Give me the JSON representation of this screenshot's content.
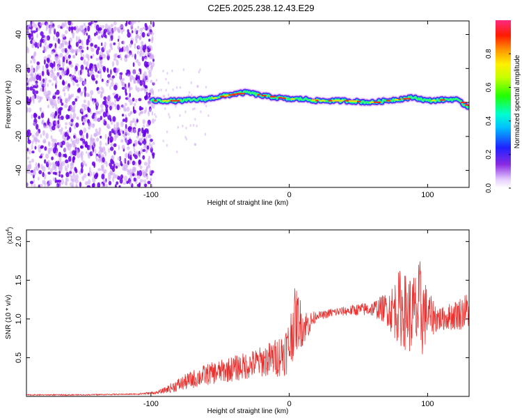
{
  "page": {
    "title": "C2E5.2025.238.12.43.E29"
  },
  "colors": {
    "background": "#ffffff",
    "axis": "#000000",
    "snr_line": "#e8302e",
    "scatter_low": "#cfa8f2",
    "scatter_high": "#6a00e8"
  },
  "chart_data": [
    {
      "type": "heatmap",
      "title": "C2E5.2025.238.12.43.E29",
      "xlabel": "Height of straight line (km)",
      "ylabel": "Frequency (Hz)",
      "xlim": [
        -190,
        130
      ],
      "ylim": [
        -50,
        48
      ],
      "xticks": [
        -100,
        0,
        100
      ],
      "xtick_labels": [
        "-100",
        "0",
        "100"
      ],
      "yticks": [
        -40,
        -20,
        0,
        20,
        40
      ],
      "ytick_labels": [
        "-40",
        "-20",
        "0",
        "20",
        "40"
      ],
      "grid": false,
      "colorbar": {
        "label": "Normalized spectral amplitude",
        "range": [
          0.0,
          1.0
        ],
        "ticks": [
          0.0,
          0.2,
          0.4,
          0.6,
          0.8
        ],
        "tick_labels": [
          "0.0",
          "0.2",
          "0.4",
          "0.6",
          "0.8"
        ],
        "colormap": "rainbow (white-violet-blue-cyan-green-yellow-orange-red-magenta)"
      },
      "description_series": {
        "name": "dominant frequency ridge",
        "x": [
          -100,
          -80,
          -60,
          -40,
          -30,
          -20,
          -10,
          0,
          10,
          20,
          40,
          60,
          80,
          90,
          100,
          120,
          130
        ],
        "y": [
          1,
          1,
          2,
          5,
          6,
          4,
          3,
          2,
          2,
          1,
          1,
          0,
          2,
          3,
          1,
          2,
          -3
        ]
      }
    },
    {
      "type": "line",
      "xlabel": "Height of straight line (km)",
      "ylabel": "SNR (10 * v/v)",
      "scale_label": "(x10",
      "scale_exponent": "4",
      "scale_close": ")",
      "xlim": [
        -190,
        130
      ],
      "ylim": [
        0.0,
        2.15
      ],
      "xticks": [
        -100,
        0,
        100
      ],
      "xtick_labels": [
        "-100",
        "0",
        "100"
      ],
      "yticks": [
        0.5,
        1.0,
        1.5,
        2.0
      ],
      "ytick_labels": [
        "0.5",
        "1.0",
        "1.5",
        "2.0"
      ],
      "grid": false,
      "series": [
        {
          "name": "SNR",
          "color": "#e8302e",
          "x": [
            -190,
            -150,
            -110,
            -95,
            -90,
            -80,
            -70,
            -60,
            -50,
            -40,
            -30,
            -20,
            -10,
            -5,
            0,
            3,
            6,
            10,
            15,
            20,
            25,
            30,
            40,
            50,
            60,
            70,
            75,
            80,
            85,
            90,
            93,
            95,
            100,
            110,
            120,
            130
          ],
          "y": [
            0.02,
            0.02,
            0.03,
            0.05,
            0.08,
            0.15,
            0.22,
            0.28,
            0.32,
            0.36,
            0.4,
            0.45,
            0.5,
            0.55,
            0.65,
            0.95,
            1.0,
            0.9,
            0.95,
            1.05,
            1.05,
            1.08,
            1.1,
            1.12,
            1.13,
            1.14,
            1.12,
            1.15,
            1.08,
            1.05,
            1.1,
            1.1,
            1.05,
            1.0,
            1.05,
            1.12
          ],
          "spread": [
            0,
            0,
            0.01,
            0.02,
            0.04,
            0.09,
            0.12,
            0.14,
            0.15,
            0.17,
            0.18,
            0.2,
            0.25,
            0.3,
            0.35,
            0.45,
            0.4,
            0.25,
            0.15,
            0.05,
            0.05,
            0.06,
            0.06,
            0.08,
            0.1,
            0.2,
            0.35,
            0.5,
            0.5,
            0.55,
            0.6,
            0.7,
            0.3,
            0.15,
            0.2,
            0.25
          ]
        }
      ]
    }
  ]
}
